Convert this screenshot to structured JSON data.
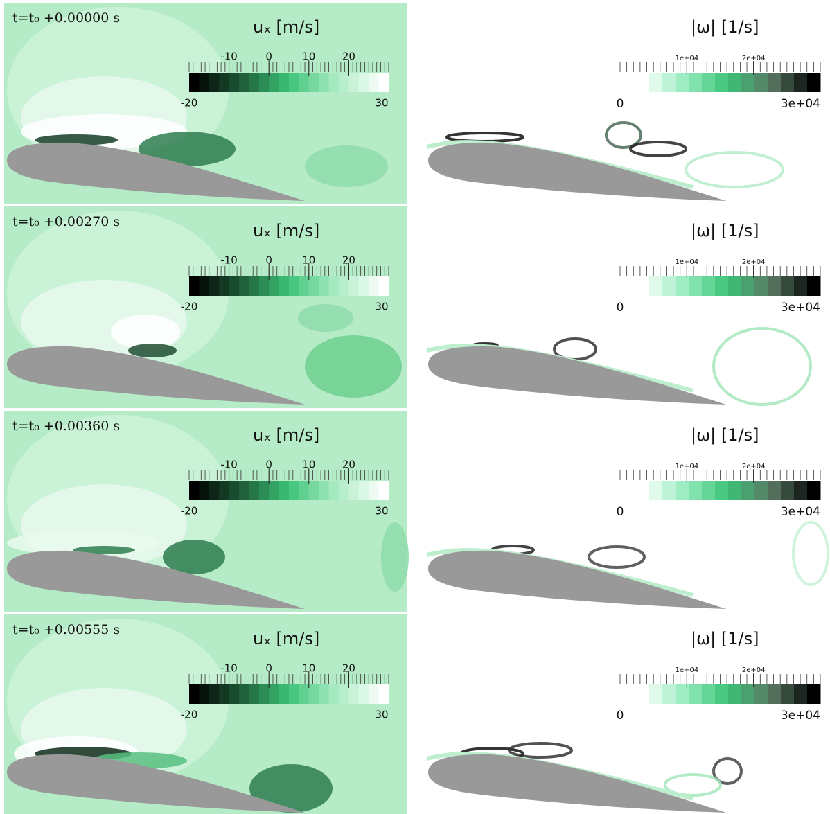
{
  "rows": [
    {
      "time_label": "t=t₀ +0.00000 s"
    },
    {
      "time_label": "t=t₀ +0.00270 s"
    },
    {
      "time_label": "t=t₀ +0.00360 s"
    },
    {
      "time_label": "t=t₀ +0.00555 s"
    }
  ],
  "ux_colorbar": {
    "title": "uₓ [m/s]",
    "min": -20,
    "max": 30,
    "ticks": [
      -10,
      0,
      10,
      20
    ]
  },
  "vorticity_colorbar": {
    "title": "|ω| [1/s]",
    "min": 0,
    "max": {
      "value": 30000,
      "label": "3e+04"
    },
    "ticks": [
      {
        "value": 10000,
        "label": "1e+04"
      },
      {
        "value": 20000,
        "label": "2e+04"
      }
    ]
  }
}
